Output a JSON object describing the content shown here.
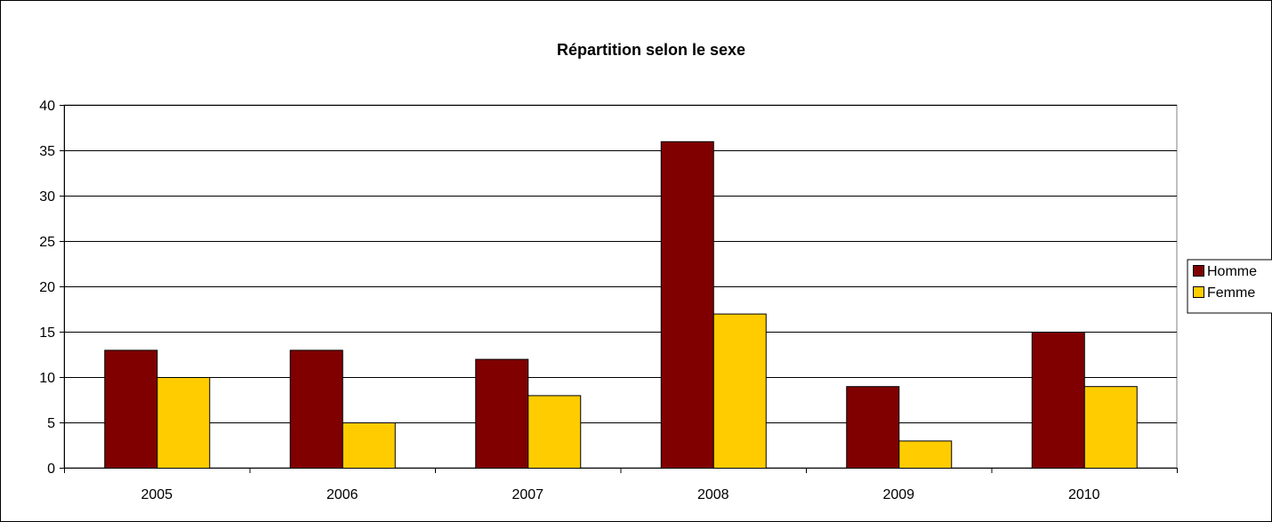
{
  "chart_data": {
    "type": "bar",
    "title": "Répartition selon le sexe",
    "xlabel": "",
    "ylabel": "",
    "categories": [
      "2005",
      "2006",
      "2007",
      "2008",
      "2009",
      "2010"
    ],
    "series": [
      {
        "name": "Homme",
        "values": [
          13,
          13,
          12,
          36,
          9,
          15
        ],
        "color": "#800000"
      },
      {
        "name": "Femme",
        "values": [
          10,
          5,
          8,
          17,
          3,
          9
        ],
        "color": "#FFCC00"
      }
    ],
    "ylim": [
      0,
      40
    ],
    "yticks": [
      0,
      5,
      10,
      15,
      20,
      25,
      30,
      35,
      40
    ],
    "grid": true,
    "legend_position": "right"
  }
}
